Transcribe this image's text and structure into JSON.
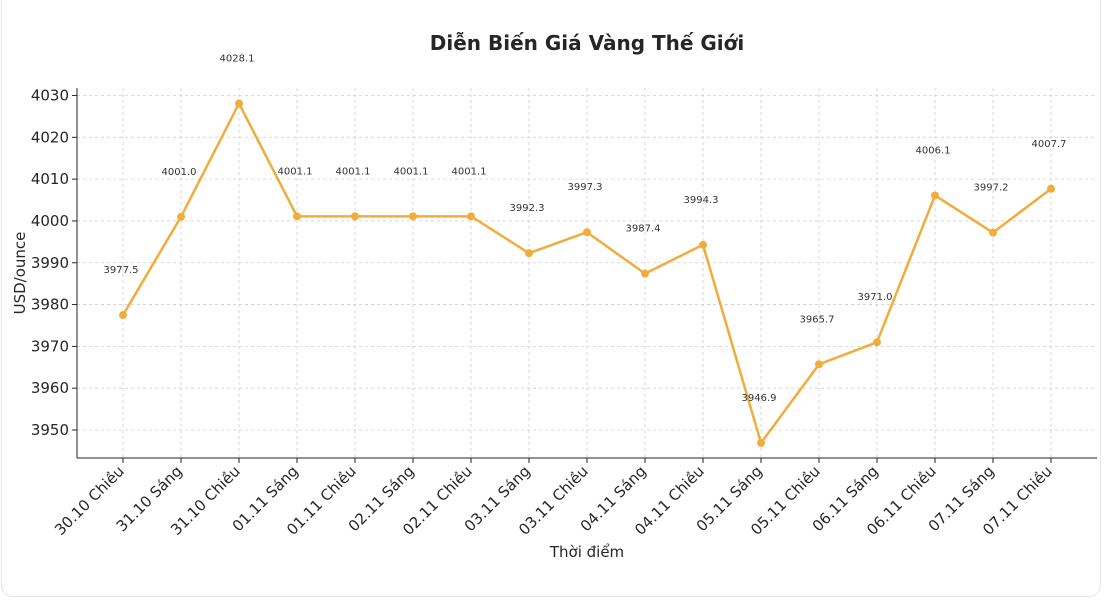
{
  "chart_data": {
    "type": "line",
    "title": "Diễn Biến Giá Vàng Thế Giới",
    "xlabel": "Thời điểm",
    "ylabel": "USD/ounce",
    "categories": [
      "30.10 Chiều",
      "31.10 Sáng",
      "31.10 Chiều",
      "01.11 Sáng",
      "01.11 Chiều",
      "02.11 Sáng",
      "02.11 Chiều",
      "03.11 Sáng",
      "03.11 Chiều",
      "04.11 Sáng",
      "04.11 Chiều",
      "05.11 Sáng",
      "05.11 Chiều",
      "06.11 Sáng",
      "06.11 Chiều",
      "07.11 Sáng",
      "07.11 Chiều"
    ],
    "values": [
      3977.5,
      4001.0,
      4028.1,
      4001.1,
      4001.1,
      4001.1,
      4001.1,
      3992.3,
      3997.3,
      3987.4,
      3994.3,
      3946.9,
      3965.7,
      3971.0,
      4006.1,
      3997.2,
      4007.7
    ],
    "data_labels": [
      "3977.5",
      "4001.0",
      "4028.1",
      "4001.1",
      "4001.1",
      "4001.1",
      "4001.1",
      "3992.3",
      "3997.3",
      "3987.4",
      "3994.3",
      "3946.9",
      "3965.7",
      "3971.0",
      "4006.1",
      "3997.2",
      "4007.7"
    ],
    "yticks": [
      3950,
      3960,
      3970,
      3980,
      3990,
      4000,
      4010,
      4020,
      4030
    ],
    "ylim": [
      3943.3,
      4031.8
    ],
    "grid": true,
    "line_color": "#f0ad3c"
  }
}
